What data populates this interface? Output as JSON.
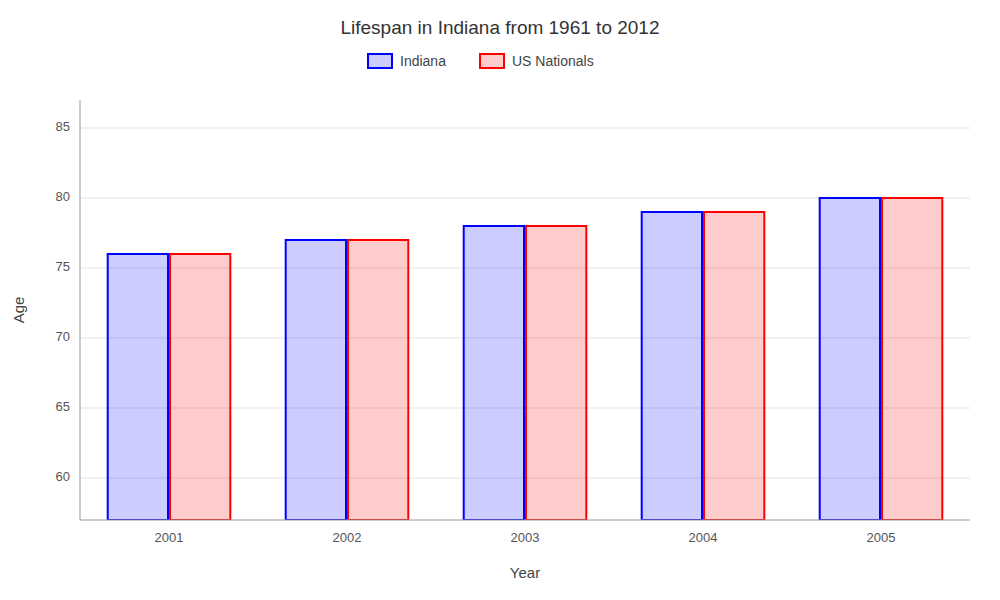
{
  "chart_data": {
    "type": "bar",
    "title": "Lifespan in Indiana from 1961 to 2012",
    "xlabel": "Year",
    "ylabel": "Age",
    "categories": [
      "2001",
      "2002",
      "2003",
      "2004",
      "2005"
    ],
    "series": [
      {
        "name": "Indiana",
        "color": "#0000ff",
        "values": [
          76.0,
          77.0,
          78.0,
          79.0,
          80.0
        ]
      },
      {
        "name": "US Nationals",
        "color": "#ff0000",
        "values": [
          76.0,
          77.0,
          78.0,
          79.0,
          80.0
        ]
      }
    ],
    "ylim": [
      57,
      87
    ],
    "yticks": [
      60,
      65,
      70,
      75,
      80,
      85
    ],
    "grid": true,
    "legend": "top"
  }
}
